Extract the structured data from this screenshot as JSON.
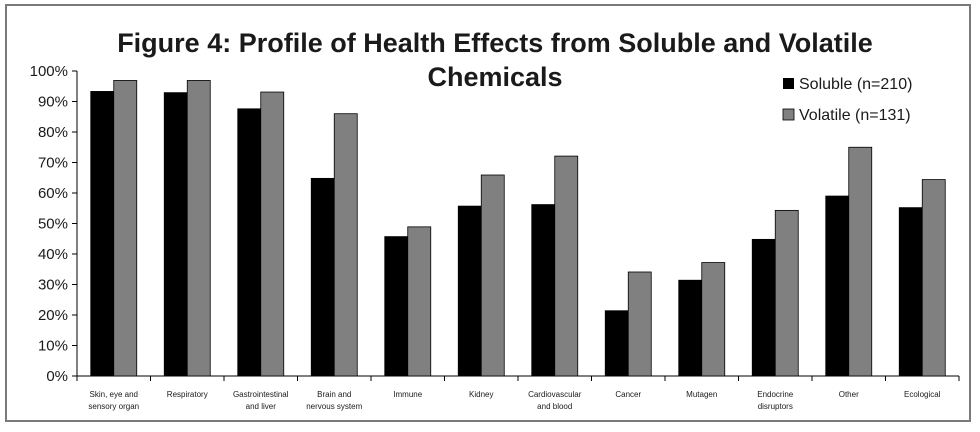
{
  "chart_data": {
    "type": "bar",
    "title_lines": [
      "Figure 4: Profile of Health Effects from Soluble and Volatile",
      "Chemicals"
    ],
    "xlabel": "",
    "ylabel": "",
    "ylim": [
      0,
      100
    ],
    "yticks": [
      "0%",
      "10%",
      "20%",
      "30%",
      "40%",
      "50%",
      "60%",
      "70%",
      "80%",
      "90%",
      "100%"
    ],
    "grid": false,
    "legend_position": "top-right",
    "categories": [
      [
        "Skin, eye and",
        "sensory organ"
      ],
      [
        "Respiratory"
      ],
      [
        "Gastrointestinal",
        "and liver"
      ],
      [
        "Brain and",
        "nervous system"
      ],
      [
        "Immune"
      ],
      [
        "Kidney"
      ],
      [
        "Cardiovascular",
        "and blood"
      ],
      [
        "Cancer"
      ],
      [
        "Mutagen"
      ],
      [
        "Endocrine",
        "disruptors"
      ],
      [
        "Other"
      ],
      [
        "Ecological"
      ]
    ],
    "series": [
      {
        "name": "Soluble (n=210)",
        "color": "#000000",
        "values": [
          93.3,
          92.9,
          87.6,
          64.8,
          45.7,
          55.7,
          56.2,
          21.4,
          31.4,
          44.8,
          59.0,
          55.2
        ]
      },
      {
        "name": "Volatile (n=131)",
        "color": "#808080",
        "values": [
          96.9,
          96.9,
          93.1,
          86.0,
          48.9,
          65.9,
          72.1,
          34.1,
          37.2,
          54.3,
          75.0,
          64.4
        ]
      }
    ]
  }
}
